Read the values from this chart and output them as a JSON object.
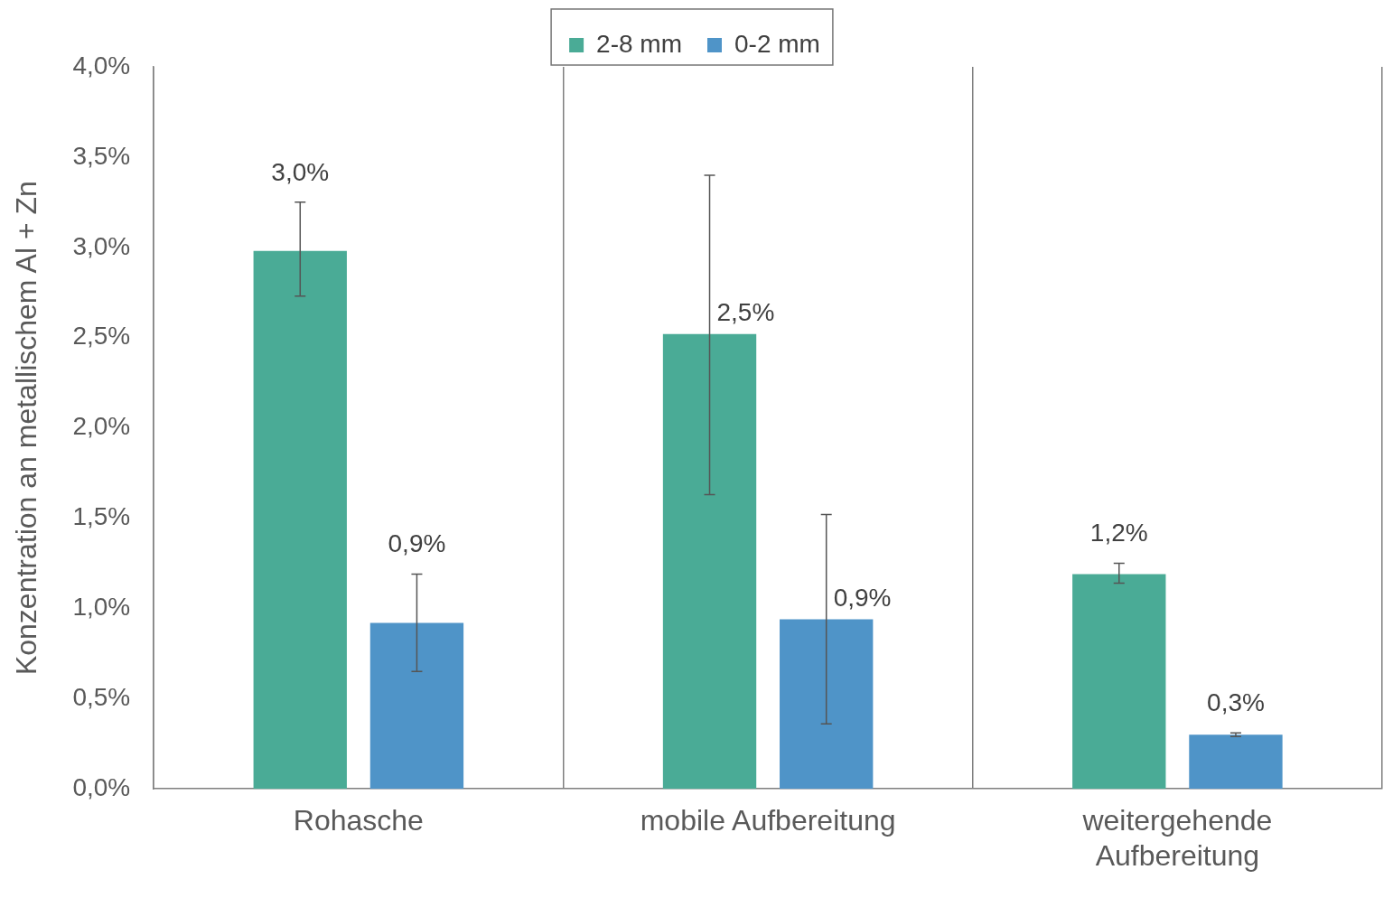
{
  "chart_data": {
    "type": "bar",
    "ylabel": "Konzentration an metallischem Al + Zn",
    "categories": [
      "Rohasche",
      "mobile Aufbereitung",
      "weitergehende Aufbereitung"
    ],
    "series": [
      {
        "name": "2-8 mm",
        "color": "#4aab96",
        "values": [
          2.98,
          2.52,
          1.19
        ],
        "errors": [
          [
            2.73,
            3.25
          ],
          [
            1.63,
            3.4
          ],
          [
            1.14,
            1.25
          ]
        ],
        "value_labels": [
          "3,0%",
          "2,5%",
          "1,2%"
        ]
      },
      {
        "name": "0-2 mm",
        "color": "#4f94c8",
        "values": [
          0.92,
          0.94,
          0.3
        ],
        "errors": [
          [
            0.65,
            1.19
          ],
          [
            0.36,
            1.52
          ],
          [
            0.29,
            0.31
          ]
        ],
        "value_labels": [
          "0,9%",
          "0,9%",
          "0,3%"
        ]
      }
    ],
    "ylim": [
      0,
      4
    ],
    "yticks": [
      {
        "value": 0,
        "label": "0,0%"
      },
      {
        "value": 0.5,
        "label": "0,5%"
      },
      {
        "value": 1,
        "label": "1,0%"
      },
      {
        "value": 1.5,
        "label": "1,5%"
      },
      {
        "value": 2,
        "label": "2,0%"
      },
      {
        "value": 2.5,
        "label": "2,5%"
      },
      {
        "value": 3,
        "label": "3,0%"
      },
      {
        "value": 3.5,
        "label": "3,5%"
      },
      {
        "value": 4,
        "label": "4,0%"
      }
    ],
    "grid": "x",
    "legend": "top"
  }
}
